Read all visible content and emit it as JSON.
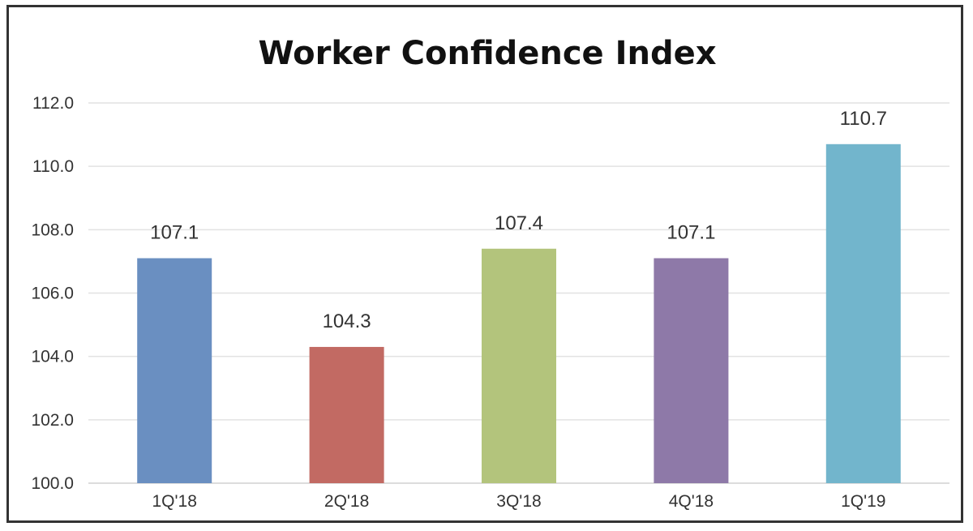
{
  "chart_data": {
    "type": "bar",
    "title": "Worker Confidence Index",
    "xlabel": "",
    "ylabel": "",
    "categories": [
      "1Q'18",
      "2Q'18",
      "3Q'18",
      "4Q'18",
      "1Q'19"
    ],
    "values": [
      107.1,
      104.3,
      107.4,
      107.1,
      110.7
    ],
    "value_labels": [
      "107.1",
      "104.3",
      "107.4",
      "107.1",
      "110.7"
    ],
    "colors": [
      "#6a8fc1",
      "#c26a63",
      "#b3c47c",
      "#8e79a8",
      "#72b5cc"
    ],
    "ylim": [
      100,
      112
    ],
    "yticks": [
      "100.0",
      "102.0",
      "104.0",
      "106.0",
      "108.0",
      "110.0",
      "112.0"
    ],
    "grid": true,
    "legend": "none"
  }
}
